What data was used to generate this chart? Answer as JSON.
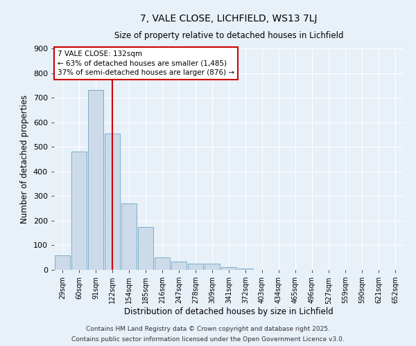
{
  "title_line1": "7, VALE CLOSE, LICHFIELD, WS13 7LJ",
  "title_line2": "Size of property relative to detached houses in Lichfield",
  "xlabel": "Distribution of detached houses by size in Lichfield",
  "ylabel": "Number of detached properties",
  "bar_labels": [
    "29sqm",
    "60sqm",
    "91sqm",
    "122sqm",
    "154sqm",
    "185sqm",
    "216sqm",
    "247sqm",
    "278sqm",
    "309sqm",
    "341sqm",
    "372sqm",
    "403sqm",
    "434sqm",
    "465sqm",
    "496sqm",
    "527sqm",
    "559sqm",
    "590sqm",
    "621sqm",
    "652sqm"
  ],
  "bar_values": [
    58,
    480,
    730,
    555,
    270,
    175,
    50,
    35,
    25,
    25,
    12,
    5,
    0,
    0,
    0,
    0,
    0,
    0,
    0,
    0,
    0
  ],
  "bar_color": "#ccdaea",
  "bar_edgecolor": "#7aaec8",
  "vline_color": "#cc0000",
  "vline_pos": 3.5,
  "ylim": [
    0,
    900
  ],
  "yticks": [
    0,
    100,
    200,
    300,
    400,
    500,
    600,
    700,
    800,
    900
  ],
  "bg_color": "#e8f0f8",
  "grid_color": "#ffffff",
  "annotation_title": "7 VALE CLOSE: 132sqm",
  "annotation_line1": "← 63% of detached houses are smaller (1,485)",
  "annotation_line2": "37% of semi-detached houses are larger (876) →",
  "annotation_box_facecolor": "#ffffff",
  "annotation_box_edgecolor": "#cc0000",
  "footer_line1": "Contains HM Land Registry data © Crown copyright and database right 2025.",
  "footer_line2": "Contains public sector information licensed under the Open Government Licence v3.0."
}
